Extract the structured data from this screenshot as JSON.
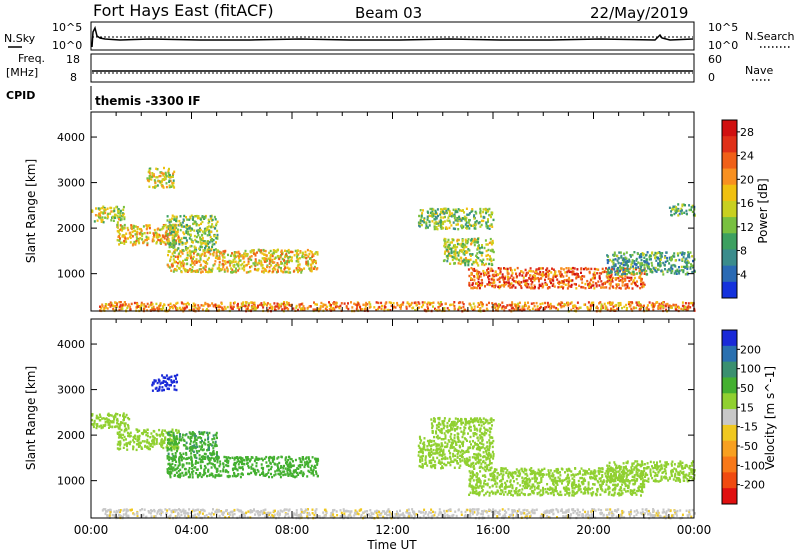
{
  "header": {
    "station": "Fort Hays East (fitACF)",
    "beam": "Beam 03",
    "date": "22/May/2019"
  },
  "panels": {
    "nsky_label": "N.Sky",
    "nsky_ticks": [
      "10^5",
      "10^0"
    ],
    "nsearch_label": "N.Search",
    "nsearch_ticks": [
      "10^5",
      "10^0"
    ],
    "freq_label": "Freq.",
    "freq_unit": "[MHz]",
    "freq_ticks": [
      "18",
      "8"
    ],
    "nave_label": "Nave",
    "nave_ticks": [
      "60",
      "0"
    ],
    "cpid_label": "CPID",
    "cpid_value": "themis -3300 IF"
  },
  "chart_data": [
    {
      "type": "heatmap",
      "ylabel": "Slant Range [km]",
      "xlabel": "Time UT",
      "x_ticks": [
        "00:00",
        "04:00",
        "08:00",
        "12:00",
        "16:00",
        "20:00",
        "00:00"
      ],
      "x_range_hours": [
        0,
        24
      ],
      "y_ticks": [
        "1000",
        "2000",
        "3000",
        "4000"
      ],
      "y_range_km": [
        180,
        4550
      ],
      "colorbar": {
        "label": "Power [dB]",
        "ticks": [
          "4",
          "8",
          "12",
          "16",
          "20",
          "24",
          "28"
        ],
        "range": [
          0,
          30
        ],
        "colors": [
          "#1432dc",
          "#2a6ab4",
          "#3a8c8c",
          "#3ca060",
          "#78c040",
          "#c8d020",
          "#f0c010",
          "#f89020",
          "#f06018",
          "#e03018",
          "#d01010"
        ]
      },
      "regions": [
        {
          "t0": 0.0,
          "t1": 1.3,
          "r0": 2150,
          "r1": 2500,
          "value": 14
        },
        {
          "t0": 1.0,
          "t1": 3.5,
          "r0": 1650,
          "r1": 2100,
          "value": 18
        },
        {
          "t0": 2.2,
          "t1": 3.3,
          "r0": 2900,
          "r1": 3350,
          "value": 16
        },
        {
          "t0": 3.0,
          "t1": 5.0,
          "r0": 1500,
          "r1": 2300,
          "value": 13
        },
        {
          "t0": 3.0,
          "t1": 9.0,
          "r0": 1050,
          "r1": 1550,
          "value": 17
        },
        {
          "t0": 0.3,
          "t1": 24.0,
          "r0": 200,
          "r1": 400,
          "value": 21
        },
        {
          "t0": 14.0,
          "t1": 16.0,
          "r0": 1200,
          "r1": 1800,
          "value": 14
        },
        {
          "t0": 15.0,
          "t1": 22.0,
          "r0": 700,
          "r1": 1150,
          "value": 23
        },
        {
          "t0": 20.5,
          "t1": 24.0,
          "r0": 1000,
          "r1": 1500,
          "value": 9
        },
        {
          "t0": 13.0,
          "t1": 16.0,
          "r0": 2000,
          "r1": 2450,
          "value": 12
        },
        {
          "t0": 23.0,
          "t1": 24.0,
          "r0": 2300,
          "r1": 2550,
          "value": 10
        }
      ]
    },
    {
      "type": "heatmap",
      "ylabel": "Slant Range [km]",
      "xlabel": "Time UT",
      "x_ticks": [
        "00:00",
        "04:00",
        "08:00",
        "12:00",
        "16:00",
        "20:00",
        "00:00"
      ],
      "x_range_hours": [
        0,
        24
      ],
      "y_ticks": [
        "1000",
        "2000",
        "3000",
        "4000"
      ],
      "y_range_km": [
        180,
        4550
      ],
      "colorbar": {
        "label": "Velocity [m s^-1]",
        "ticks": [
          "200",
          "100",
          "50",
          "15",
          "-15",
          "-50",
          "-100",
          "-200"
        ],
        "colors": [
          "#1a2ad8",
          "#2a70b0",
          "#3a9070",
          "#44b030",
          "#90d030",
          "#c8c8c8",
          "#f0c820",
          "#f8a020",
          "#f87818",
          "#f04a10",
          "#e01010"
        ]
      },
      "regions": [
        {
          "t0": 0.0,
          "t1": 1.5,
          "r0": 2150,
          "r1": 2500,
          "value": 0
        },
        {
          "t0": 1.0,
          "t1": 3.5,
          "r0": 1700,
          "r1": 2150,
          "value": 0
        },
        {
          "t0": 2.4,
          "t1": 3.4,
          "r0": 3000,
          "r1": 3350,
          "value": 180
        },
        {
          "t0": 3.0,
          "t1": 5.0,
          "r0": 1500,
          "r1": 2100,
          "value": 40
        },
        {
          "t0": 3.0,
          "t1": 9.0,
          "r0": 1100,
          "r1": 1550,
          "value": 35
        },
        {
          "t0": 0.3,
          "t1": 24.0,
          "r0": 200,
          "r1": 400,
          "value": -40
        },
        {
          "t0": 13.0,
          "t1": 16.0,
          "r0": 1300,
          "r1": 2000,
          "value": 0
        },
        {
          "t0": 15.0,
          "t1": 22.0,
          "r0": 700,
          "r1": 1300,
          "value": 0
        },
        {
          "t0": 20.5,
          "t1": 24.0,
          "r0": 1000,
          "r1": 1450,
          "value": 0
        },
        {
          "t0": 13.5,
          "t1": 16.0,
          "r0": 2000,
          "r1": 2400,
          "value": 0
        }
      ]
    }
  ]
}
